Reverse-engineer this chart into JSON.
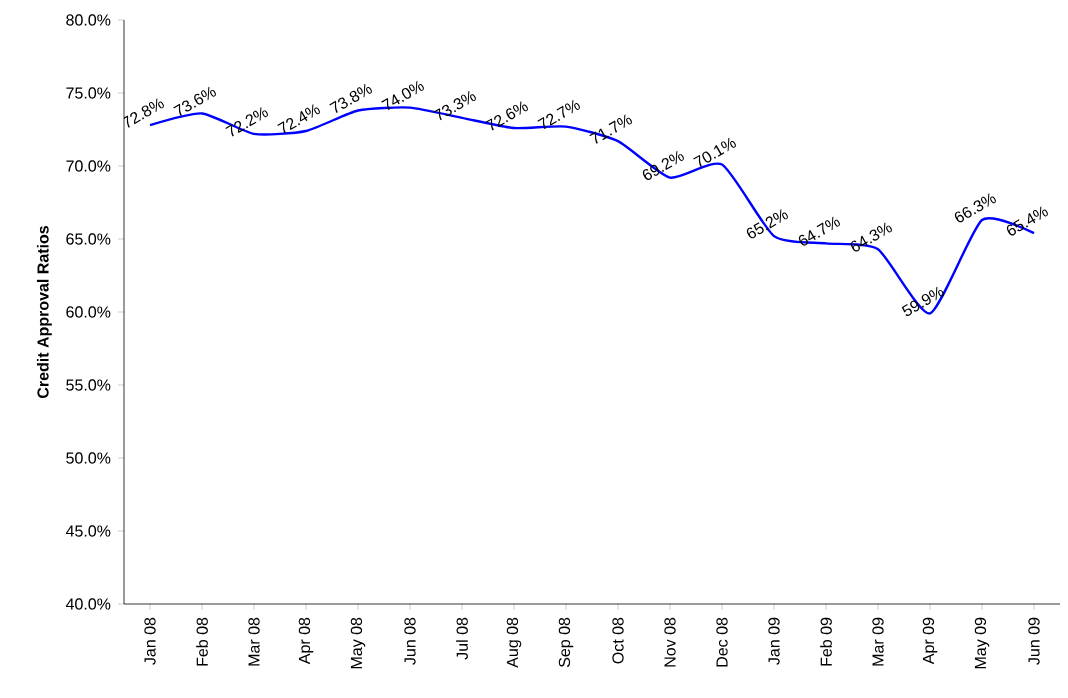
{
  "chart_data": {
    "type": "line",
    "ylabel": "Credit Approval Ratios",
    "categories": [
      "Jan 08",
      "Feb 08",
      "Mar 08",
      "Apr 08",
      "May 08",
      "Jun 08",
      "Jul 08",
      "Aug 08",
      "Sep 08",
      "Oct 08",
      "Nov 08",
      "Dec 08",
      "Jan 09",
      "Feb 09",
      "Mar 09",
      "Apr 09",
      "May 09",
      "Jun 09"
    ],
    "series": [
      {
        "color": "#0000ff",
        "values": [
          72.8,
          73.6,
          72.2,
          72.4,
          73.8,
          74.0,
          73.3,
          72.6,
          72.7,
          71.7,
          69.2,
          70.1,
          65.2,
          64.7,
          64.3,
          59.9,
          66.3,
          65.4
        ],
        "value_labels": [
          "72.8%",
          "73.6%",
          "72.2%",
          "72.4%",
          "73.8%",
          "74.0%",
          "73.3%",
          "72.6%",
          "72.7%",
          "71.7%",
          "69.2%",
          "70.1%",
          "65.2%",
          "64.7%",
          "64.3%",
          "59.9%",
          "66.3%",
          "65.4%"
        ]
      }
    ],
    "ylim": [
      40,
      80
    ],
    "yticks": [
      {
        "value": 40,
        "label": "40.0%"
      },
      {
        "value": 45,
        "label": "45.0%"
      },
      {
        "value": 50,
        "label": "50.0%"
      },
      {
        "value": 55,
        "label": "55.0%"
      },
      {
        "value": 60,
        "label": "60.0%"
      },
      {
        "value": 65,
        "label": "65.0%"
      },
      {
        "value": 70,
        "label": "70.0%"
      },
      {
        "value": 75,
        "label": "75.0%"
      },
      {
        "value": 80,
        "label": "80.0%"
      }
    ],
    "grid": false,
    "marker": "none",
    "line_style": "solid"
  }
}
